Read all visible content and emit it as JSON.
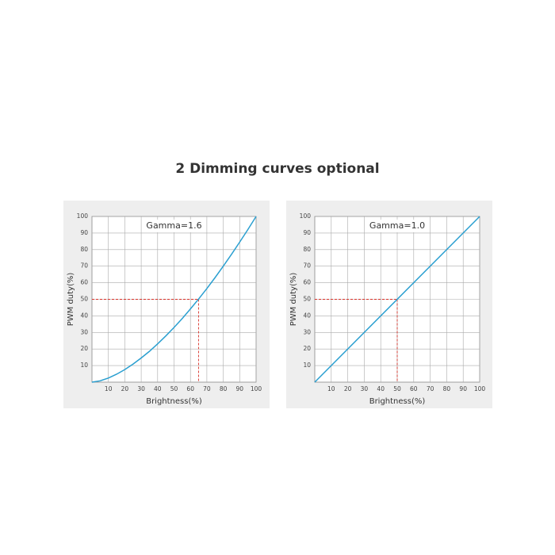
{
  "title": "2 Dimming curves optional",
  "chart_data": [
    {
      "type": "line",
      "title": "Gamma=1.6",
      "x_label": "Brightness(%)",
      "y_label": "PWM duty(%)",
      "x": [
        0,
        5,
        10,
        15,
        20,
        25,
        30,
        35,
        40,
        45,
        50,
        55,
        60,
        65,
        70,
        75,
        80,
        85,
        90,
        95,
        100
      ],
      "series": [
        {
          "name": "Gamma=1.6",
          "color": "#2a9fd0",
          "values": [
            0,
            0.8,
            2.5,
            4.8,
            7.6,
            10.9,
            14.6,
            18.6,
            23.1,
            27.9,
            33.0,
            38.4,
            44.2,
            50.2,
            56.5,
            63.1,
            70.0,
            77.1,
            84.5,
            92.1,
            100
          ]
        }
      ],
      "reference": {
        "x": 65,
        "y": 50,
        "color": "#d9342b"
      },
      "xlim": [
        0,
        100
      ],
      "ylim": [
        0,
        100
      ],
      "xticks": [
        10,
        20,
        30,
        40,
        50,
        60,
        70,
        80,
        90,
        100
      ],
      "yticks": [
        10,
        20,
        30,
        40,
        50,
        60,
        70,
        80,
        90,
        100
      ],
      "grid": true
    },
    {
      "type": "line",
      "title": "Gamma=1.0",
      "x_label": "Brightness(%)",
      "y_label": "PWM duty(%)",
      "x": [
        0,
        100
      ],
      "series": [
        {
          "name": "Gamma=1.0",
          "color": "#2a9fd0",
          "values": [
            0,
            100
          ]
        }
      ],
      "reference": {
        "x": 50,
        "y": 50,
        "color": "#d9342b"
      },
      "xlim": [
        0,
        100
      ],
      "ylim": [
        0,
        100
      ],
      "xticks": [
        10,
        20,
        30,
        40,
        50,
        60,
        70,
        80,
        90,
        100
      ],
      "yticks": [
        10,
        20,
        30,
        40,
        50,
        60,
        70,
        80,
        90,
        100
      ],
      "grid": true
    }
  ]
}
